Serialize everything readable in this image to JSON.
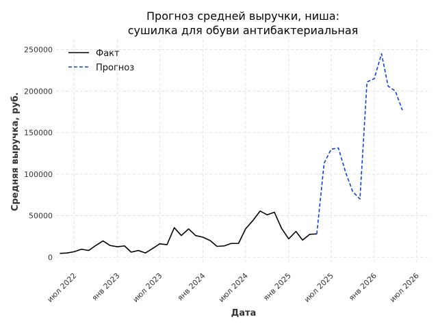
{
  "chart_data": {
    "type": "line",
    "title_line1": "Прогноз средней выручки, ниша:",
    "title_line2": "сушилка для обуви антибактериальная",
    "xlabel": "Дата",
    "ylabel": "Средняя выручка, руб.",
    "ylim": [
      -8000,
      262000
    ],
    "yticks": [
      0,
      50000,
      100000,
      150000,
      200000,
      250000
    ],
    "xlim": [
      "2022-04-15",
      "2026-08-20"
    ],
    "xticks": [
      {
        "date": "2022-07-01",
        "label": "июл 2022"
      },
      {
        "date": "2023-01-01",
        "label": "янв 2023"
      },
      {
        "date": "2023-07-01",
        "label": "июл 2023"
      },
      {
        "date": "2024-01-01",
        "label": "янв 2024"
      },
      {
        "date": "2024-07-01",
        "label": "июл 2024"
      },
      {
        "date": "2025-01-01",
        "label": "янв 2025"
      },
      {
        "date": "2025-07-01",
        "label": "июл 2025"
      },
      {
        "date": "2026-01-01",
        "label": "янв 2026"
      },
      {
        "date": "2026-07-01",
        "label": "июл 2026"
      }
    ],
    "grid": true,
    "legend_position": "top-left",
    "series": [
      {
        "name": "Факт",
        "color": "#000000",
        "style": "solid",
        "points": [
          [
            "2022-05-01",
            4500
          ],
          [
            "2022-06-01",
            5000
          ],
          [
            "2022-07-01",
            6500
          ],
          [
            "2022-08-01",
            9500
          ],
          [
            "2022-09-01",
            8000
          ],
          [
            "2022-10-01",
            14000
          ],
          [
            "2022-11-01",
            19500
          ],
          [
            "2022-12-01",
            14000
          ],
          [
            "2023-01-01",
            12500
          ],
          [
            "2023-02-01",
            13500
          ],
          [
            "2023-03-01",
            6000
          ],
          [
            "2023-04-01",
            8000
          ],
          [
            "2023-05-01",
            5000
          ],
          [
            "2023-06-01",
            10500
          ],
          [
            "2023-07-01",
            16000
          ],
          [
            "2023-08-01",
            15000
          ],
          [
            "2023-09-01",
            35500
          ],
          [
            "2023-10-01",
            26000
          ],
          [
            "2023-11-01",
            34000
          ],
          [
            "2023-12-01",
            26000
          ],
          [
            "2024-01-01",
            24000
          ],
          [
            "2024-02-01",
            20000
          ],
          [
            "2024-03-01",
            13000
          ],
          [
            "2024-04-01",
            13500
          ],
          [
            "2024-05-01",
            16500
          ],
          [
            "2024-06-01",
            16500
          ],
          [
            "2024-07-01",
            34000
          ],
          [
            "2024-08-01",
            44000
          ],
          [
            "2024-09-01",
            55500
          ],
          [
            "2024-10-01",
            51000
          ],
          [
            "2024-11-01",
            54000
          ],
          [
            "2024-12-01",
            35000
          ],
          [
            "2025-01-01",
            22000
          ],
          [
            "2025-02-01",
            31000
          ],
          [
            "2025-03-01",
            20500
          ],
          [
            "2025-04-01",
            27500
          ],
          [
            "2025-05-01",
            28000
          ]
        ]
      },
      {
        "name": "Прогноз",
        "color": "#0b3fd6",
        "style": "dashed",
        "points": [
          [
            "2025-05-01",
            28000
          ],
          [
            "2025-06-01",
            113000
          ],
          [
            "2025-07-01",
            130000
          ],
          [
            "2025-08-01",
            131500
          ],
          [
            "2025-09-01",
            102000
          ],
          [
            "2025-10-01",
            79000
          ],
          [
            "2025-11-01",
            70000
          ],
          [
            "2025-12-01",
            211000
          ],
          [
            "2026-01-01",
            215000
          ],
          [
            "2026-02-01",
            245000
          ],
          [
            "2026-03-01",
            206000
          ],
          [
            "2026-04-01",
            200000
          ],
          [
            "2026-05-01",
            177000
          ]
        ]
      }
    ]
  }
}
